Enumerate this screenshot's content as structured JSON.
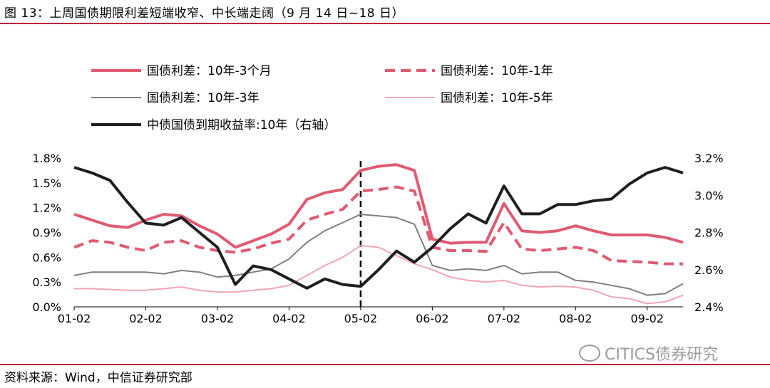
{
  "caption": "图 13：上周国债期限利差短端收窄、中长端走阔（9 月 14 日~18 日）",
  "source": "资料来源：Wind，中信证券研究部",
  "watermark": "CITICS债券研究",
  "chart_data": {
    "type": "line",
    "x_tick_labels": [
      "01-02",
      "02-02",
      "03-02",
      "04-02",
      "05-02",
      "06-02",
      "07-02",
      "08-02",
      "09-02"
    ],
    "x": [
      "01-02",
      "01-09",
      "01-16",
      "01-23",
      "02-02",
      "02-09",
      "02-16",
      "02-23",
      "03-02",
      "03-09",
      "03-16",
      "03-23",
      "04-02",
      "04-09",
      "04-16",
      "04-23",
      "05-02",
      "05-09",
      "05-16",
      "05-23",
      "06-02",
      "06-09",
      "06-16",
      "06-23",
      "07-02",
      "07-09",
      "07-16",
      "07-23",
      "08-02",
      "08-09",
      "08-16",
      "08-23",
      "09-02",
      "09-09",
      "09-18"
    ],
    "y_left": {
      "ticks": [
        "0.0%",
        "0.3%",
        "0.6%",
        "0.9%",
        "1.2%",
        "1.5%",
        "1.8%"
      ],
      "range": [
        0,
        1.8
      ],
      "unit": "%"
    },
    "y_right": {
      "ticks": [
        "2.4%",
        "2.6%",
        "2.8%",
        "3.0%",
        "3.2%"
      ],
      "range": [
        2.4,
        3.2
      ],
      "unit": "%"
    },
    "vertical_marker": {
      "x": "05-02",
      "style": "dashed"
    },
    "grid": false,
    "legend_position": "top",
    "series": [
      {
        "name": "国债利差：10年-3个月",
        "axis": "left",
        "color": "#e05a72",
        "style": "solid",
        "width": 4,
        "values": [
          1.12,
          1.05,
          0.98,
          0.96,
          1.05,
          1.12,
          1.1,
          0.98,
          0.88,
          0.72,
          0.8,
          0.88,
          1.0,
          1.3,
          1.38,
          1.42,
          1.65,
          1.7,
          1.72,
          1.65,
          0.82,
          0.77,
          0.78,
          0.78,
          1.25,
          0.92,
          0.9,
          0.92,
          0.98,
          0.92,
          0.87,
          0.87,
          0.87,
          0.84,
          0.78
        ]
      },
      {
        "name": "国债利差：10年-1年",
        "axis": "left",
        "color": "#e05a72",
        "style": "dashed",
        "width": 4,
        "values": [
          0.72,
          0.8,
          0.78,
          0.72,
          0.68,
          0.78,
          0.8,
          0.72,
          0.68,
          0.66,
          0.7,
          0.77,
          0.82,
          1.05,
          1.12,
          1.18,
          1.4,
          1.42,
          1.45,
          1.4,
          0.72,
          0.68,
          0.68,
          0.67,
          1.02,
          0.7,
          0.68,
          0.7,
          0.72,
          0.68,
          0.56,
          0.55,
          0.54,
          0.52,
          0.52
        ]
      },
      {
        "name": "国债利差：10年-3年",
        "axis": "left",
        "color": "#7f7f7f",
        "style": "solid",
        "width": 2,
        "values": [
          0.38,
          0.42,
          0.42,
          0.42,
          0.42,
          0.4,
          0.44,
          0.42,
          0.36,
          0.38,
          0.42,
          0.46,
          0.58,
          0.78,
          0.92,
          1.02,
          1.12,
          1.1,
          1.08,
          1.0,
          0.5,
          0.44,
          0.46,
          0.44,
          0.5,
          0.4,
          0.42,
          0.42,
          0.32,
          0.3,
          0.26,
          0.22,
          0.14,
          0.16,
          0.28
        ]
      },
      {
        "name": "国债利差：10年-5年",
        "axis": "left",
        "color": "#f2a5b3",
        "style": "solid",
        "width": 2,
        "values": [
          0.22,
          0.22,
          0.21,
          0.2,
          0.2,
          0.22,
          0.24,
          0.2,
          0.18,
          0.18,
          0.2,
          0.22,
          0.26,
          0.38,
          0.5,
          0.6,
          0.74,
          0.72,
          0.62,
          0.52,
          0.45,
          0.36,
          0.32,
          0.3,
          0.32,
          0.26,
          0.24,
          0.25,
          0.24,
          0.2,
          0.12,
          0.1,
          0.04,
          0.06,
          0.14
        ]
      },
      {
        "name": "中债国债到期收益率:10年（右轴）",
        "axis": "right",
        "color": "#1f1f1f",
        "style": "solid",
        "width": 4,
        "values": [
          3.15,
          3.12,
          3.08,
          2.96,
          2.85,
          2.84,
          2.88,
          2.8,
          2.72,
          2.52,
          2.62,
          2.6,
          2.55,
          2.5,
          2.55,
          2.52,
          2.51,
          2.6,
          2.7,
          2.64,
          2.72,
          2.82,
          2.9,
          2.85,
          3.05,
          2.9,
          2.9,
          2.95,
          2.95,
          2.97,
          2.98,
          3.06,
          3.12,
          3.15,
          3.12
        ]
      }
    ]
  }
}
